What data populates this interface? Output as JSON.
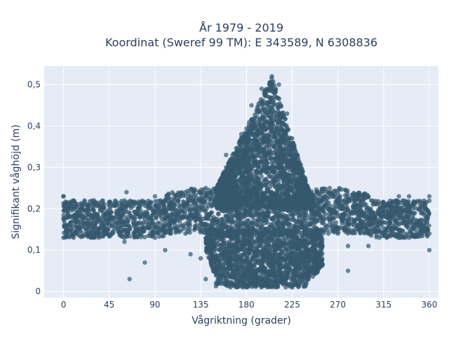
{
  "chart_data": {
    "type": "scatter",
    "title": "År 1979 - 2019",
    "subtitle": "Koordinat (Sweref 99 TM): E 343589, N 6308836",
    "xlabel": "Vågriktning (grader)",
    "ylabel": "Signifikant våghöjd (m)",
    "xlim": [
      -19,
      369
    ],
    "ylim": [
      -0.015,
      0.545
    ],
    "xticks": [
      0,
      45,
      90,
      135,
      180,
      225,
      270,
      315,
      360
    ],
    "yticks": [
      0,
      0.1,
      0.2,
      0.3,
      0.4,
      0.5
    ],
    "xtick_labels": [
      "0",
      "45",
      "90",
      "135",
      "180",
      "225",
      "270",
      "315",
      "360"
    ],
    "ytick_labels": [
      "0",
      "0,1",
      "0,2",
      "0,3",
      "0,4",
      "0,5"
    ],
    "grid": true,
    "marker_color": "#34586e",
    "plot_bg": "#e5ecf6",
    "series": [
      {
        "description": "dense horizontal band",
        "points": [
          [
            0,
            0.13
          ],
          [
            0,
            0.23
          ],
          [
            10,
            0.13
          ],
          [
            10,
            0.22
          ],
          [
            30,
            0.13
          ],
          [
            30,
            0.22
          ],
          [
            60,
            0.13
          ],
          [
            60,
            0.22
          ],
          [
            90,
            0.13
          ],
          [
            90,
            0.23
          ],
          [
            120,
            0.14
          ],
          [
            120,
            0.24
          ],
          [
            140,
            0.15
          ],
          [
            140,
            0.25
          ],
          [
            160,
            0.14
          ],
          [
            160,
            0.26
          ],
          [
            240,
            0.15
          ],
          [
            240,
            0.25
          ],
          [
            270,
            0.14
          ],
          [
            270,
            0.24
          ],
          [
            300,
            0.14
          ],
          [
            300,
            0.23
          ],
          [
            330,
            0.13
          ],
          [
            330,
            0.23
          ],
          [
            360,
            0.14
          ],
          [
            360,
            0.23
          ]
        ]
      },
      {
        "description": "central peak envelope",
        "points": [
          [
            160,
            0.3
          ],
          [
            175,
            0.38
          ],
          [
            185,
            0.45
          ],
          [
            195,
            0.49
          ],
          [
            205,
            0.52
          ],
          [
            212,
            0.5
          ],
          [
            220,
            0.43
          ],
          [
            225,
            0.37
          ],
          [
            232,
            0.3
          ],
          [
            240,
            0.24
          ],
          [
            250,
            0.2
          ],
          [
            250,
            0.05
          ],
          [
            240,
            0.03
          ],
          [
            225,
            0.01
          ],
          [
            180,
            0.01
          ],
          [
            150,
            0.02
          ],
          [
            140,
            0.03
          ],
          [
            135,
            0.08
          ],
          [
            140,
            0.15
          ],
          [
            150,
            0.25
          ]
        ]
      },
      {
        "description": "outlier points",
        "points": [
          [
            0,
            0.23
          ],
          [
            62,
            0.24
          ],
          [
            60,
            0.12
          ],
          [
            65,
            0.03
          ],
          [
            80,
            0.07
          ],
          [
            100,
            0.1
          ],
          [
            125,
            0.09
          ],
          [
            145,
            0.15
          ],
          [
            160,
            0.33
          ],
          [
            183,
            0.38
          ],
          [
            240,
            0.22
          ],
          [
            262,
            0.25
          ],
          [
            280,
            0.05
          ],
          [
            280,
            0.11
          ],
          [
            300,
            0.11
          ],
          [
            340,
            0.23
          ],
          [
            360,
            0.1
          ]
        ]
      }
    ]
  }
}
